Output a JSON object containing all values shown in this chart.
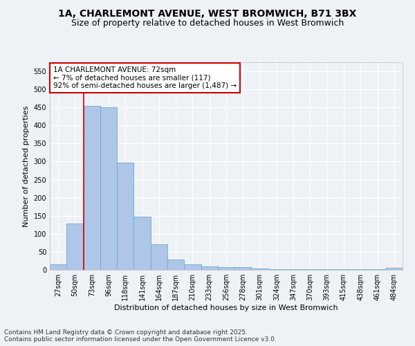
{
  "title_line1": "1A, CHARLEMONT AVENUE, WEST BROMWICH, B71 3BX",
  "title_line2": "Size of property relative to detached houses in West Bromwich",
  "xlabel": "Distribution of detached houses by size in West Bromwich",
  "ylabel": "Number of detached properties",
  "bar_color": "#aec6e8",
  "bar_edge_color": "#6aaad4",
  "background_color": "#eef2f7",
  "grid_color": "#ffffff",
  "categories": [
    "27sqm",
    "50sqm",
    "73sqm",
    "96sqm",
    "118sqm",
    "141sqm",
    "164sqm",
    "187sqm",
    "210sqm",
    "233sqm",
    "256sqm",
    "278sqm",
    "301sqm",
    "324sqm",
    "347sqm",
    "370sqm",
    "393sqm",
    "415sqm",
    "438sqm",
    "461sqm",
    "484sqm"
  ],
  "values": [
    15,
    128,
    455,
    450,
    298,
    148,
    70,
    28,
    15,
    10,
    8,
    7,
    3,
    2,
    2,
    1,
    1,
    1,
    1,
    1,
    5
  ],
  "ylim": [
    0,
    575
  ],
  "yticks": [
    0,
    50,
    100,
    150,
    200,
    250,
    300,
    350,
    400,
    450,
    500,
    550
  ],
  "vline_color": "#cc0000",
  "vline_x_index": 2,
  "annotation_text": "1A CHARLEMONT AVENUE: 72sqm\n← 7% of detached houses are smaller (117)\n92% of semi-detached houses are larger (1,487) →",
  "annotation_box_color": "#ffffff",
  "annotation_border_color": "#cc0000",
  "footer_text": "Contains HM Land Registry data © Crown copyright and database right 2025.\nContains public sector information licensed under the Open Government Licence v3.0.",
  "title_fontsize": 10,
  "subtitle_fontsize": 9,
  "axis_label_fontsize": 8,
  "tick_fontsize": 7,
  "annotation_fontsize": 7.5,
  "footer_fontsize": 6.5
}
